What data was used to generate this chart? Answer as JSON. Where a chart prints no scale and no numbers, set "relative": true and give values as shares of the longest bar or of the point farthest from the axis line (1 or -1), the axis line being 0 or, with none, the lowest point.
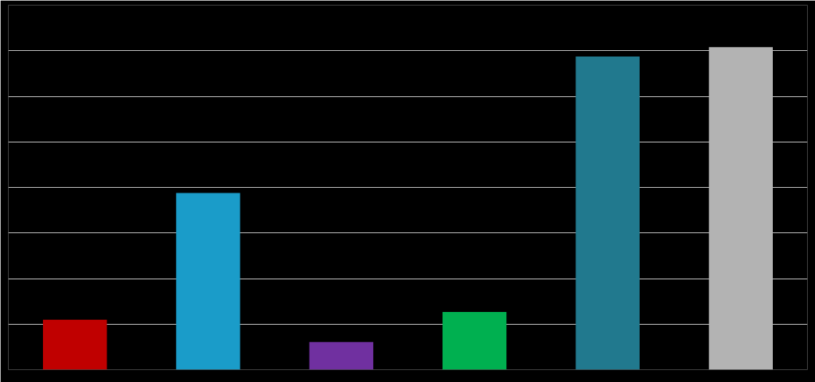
{
  "chart_data": {
    "type": "bar",
    "relative": true,
    "categories": [
      null,
      null,
      null,
      null,
      null,
      null
    ],
    "values": [
      0.155,
      0.548,
      0.086,
      0.179,
      0.971,
      1
    ],
    "colors": [
      "#c00000",
      "#1a9cc9",
      "#7030a0",
      "#00b050",
      "#21798e",
      "#b3b3b3"
    ],
    "grid": "y"
  }
}
